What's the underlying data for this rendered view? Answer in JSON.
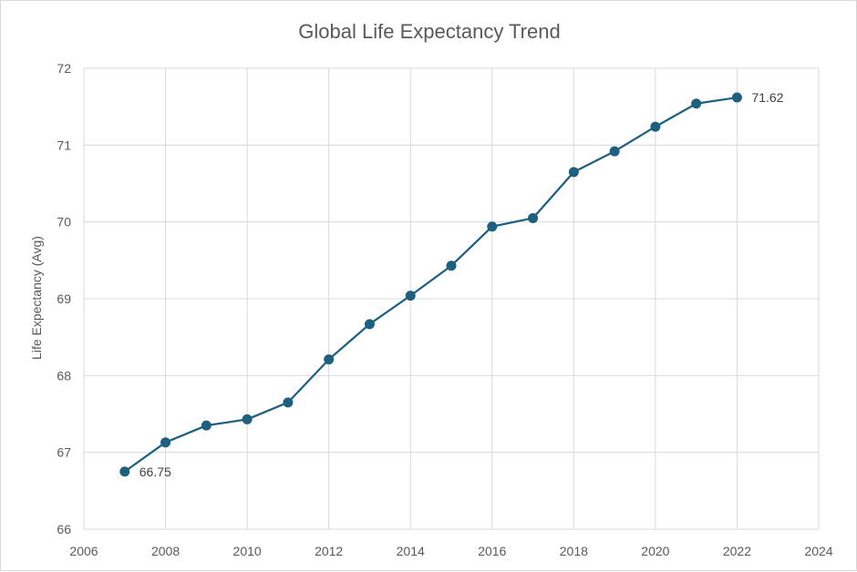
{
  "chart_data": {
    "type": "scatter",
    "title": "Global Life Expectancy Trend",
    "xlabel": "",
    "ylabel": "Life Expectancy (Avg)",
    "xlim": [
      2006,
      2024
    ],
    "ylim": [
      66,
      72
    ],
    "x_ticks": [
      2006,
      2008,
      2010,
      2012,
      2014,
      2016,
      2018,
      2020,
      2022,
      2024
    ],
    "y_ticks": [
      66,
      67,
      68,
      69,
      70,
      71,
      72
    ],
    "grid": true,
    "legend": "none",
    "series": [
      {
        "x": [
          2007,
          2008,
          2009,
          2010,
          2011,
          2012,
          2013,
          2014,
          2015,
          2016,
          2017,
          2018,
          2019,
          2020,
          2021,
          2022
        ],
        "y": [
          66.75,
          67.13,
          67.35,
          67.43,
          67.65,
          68.21,
          68.67,
          69.04,
          69.43,
          69.94,
          70.05,
          70.65,
          70.92,
          71.24,
          71.54,
          71.62
        ],
        "color": "#1f5f7f",
        "marker": "circle",
        "connected": true
      }
    ],
    "data_labels": [
      {
        "x": 2007,
        "y": 66.75,
        "text": "66.75"
      },
      {
        "x": 2022,
        "y": 71.62,
        "text": "71.62"
      }
    ]
  }
}
